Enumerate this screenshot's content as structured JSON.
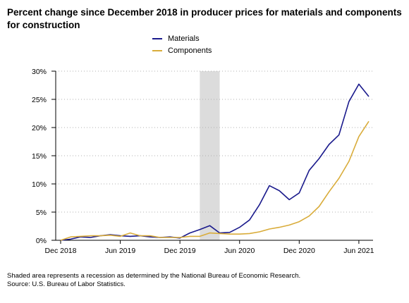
{
  "chart_data": {
    "type": "line",
    "title": "Percent change since December 2018 in producer prices for materials and components for construction",
    "x_tick_labels": [
      "Dec 2018",
      "Jun 2019",
      "Dec 2019",
      "Jun 2020",
      "Dec 2020",
      "Jun 2021"
    ],
    "y_tick_labels": [
      "0%",
      "5%",
      "10%",
      "15%",
      "20%",
      "25%",
      "30%"
    ],
    "ylim": [
      0,
      30
    ],
    "x_start": "Dec 2018",
    "x_end": "Jul 2021",
    "grid": "horizontal-dotted",
    "legend_position": "top-center",
    "recession_band": {
      "start": "Feb 2020",
      "end": "Apr 2020"
    },
    "x": [
      "Dec 2018",
      "Jan 2019",
      "Feb 2019",
      "Mar 2019",
      "Apr 2019",
      "May 2019",
      "Jun 2019",
      "Jul 2019",
      "Aug 2019",
      "Sep 2019",
      "Oct 2019",
      "Nov 2019",
      "Dec 2019",
      "Jan 2020",
      "Feb 2020",
      "Mar 2020",
      "Apr 2020",
      "May 2020",
      "Jun 2020",
      "Jul 2020",
      "Aug 2020",
      "Sep 2020",
      "Oct 2020",
      "Nov 2020",
      "Dec 2020",
      "Jan 2021",
      "Feb 2021",
      "Mar 2021",
      "Apr 2021",
      "May 2021",
      "Jun 2021",
      "Jul 2021"
    ],
    "series": [
      {
        "name": "Materials",
        "color": "#1a1a8c",
        "values": [
          0,
          0.2,
          0.6,
          0.5,
          0.8,
          1.0,
          0.8,
          0.7,
          0.8,
          0.6,
          0.5,
          0.6,
          0.4,
          1.3,
          1.9,
          2.6,
          1.3,
          1.4,
          2.3,
          3.6,
          6.3,
          9.7,
          8.8,
          7.2,
          8.4,
          12.4,
          14.5,
          17.0,
          18.7,
          24.6,
          27.7,
          25.5
        ]
      },
      {
        "name": "Components",
        "color": "#d9ac3a",
        "values": [
          0,
          0.6,
          0.7,
          0.8,
          0.8,
          0.9,
          0.7,
          1.3,
          0.8,
          0.8,
          0.5,
          0.5,
          0.5,
          0.7,
          0.7,
          1.3,
          1.2,
          1.1,
          1.1,
          1.2,
          1.5,
          2.0,
          2.3,
          2.7,
          3.3,
          4.3,
          6.0,
          8.6,
          11.0,
          14.0,
          18.4,
          21.1
        ]
      }
    ]
  },
  "footnotes": [
    "Shaded area represents a recession as determined by the National Bureau of Economic Research.",
    "Source: U.S. Bureau of Labor Statistics."
  ]
}
